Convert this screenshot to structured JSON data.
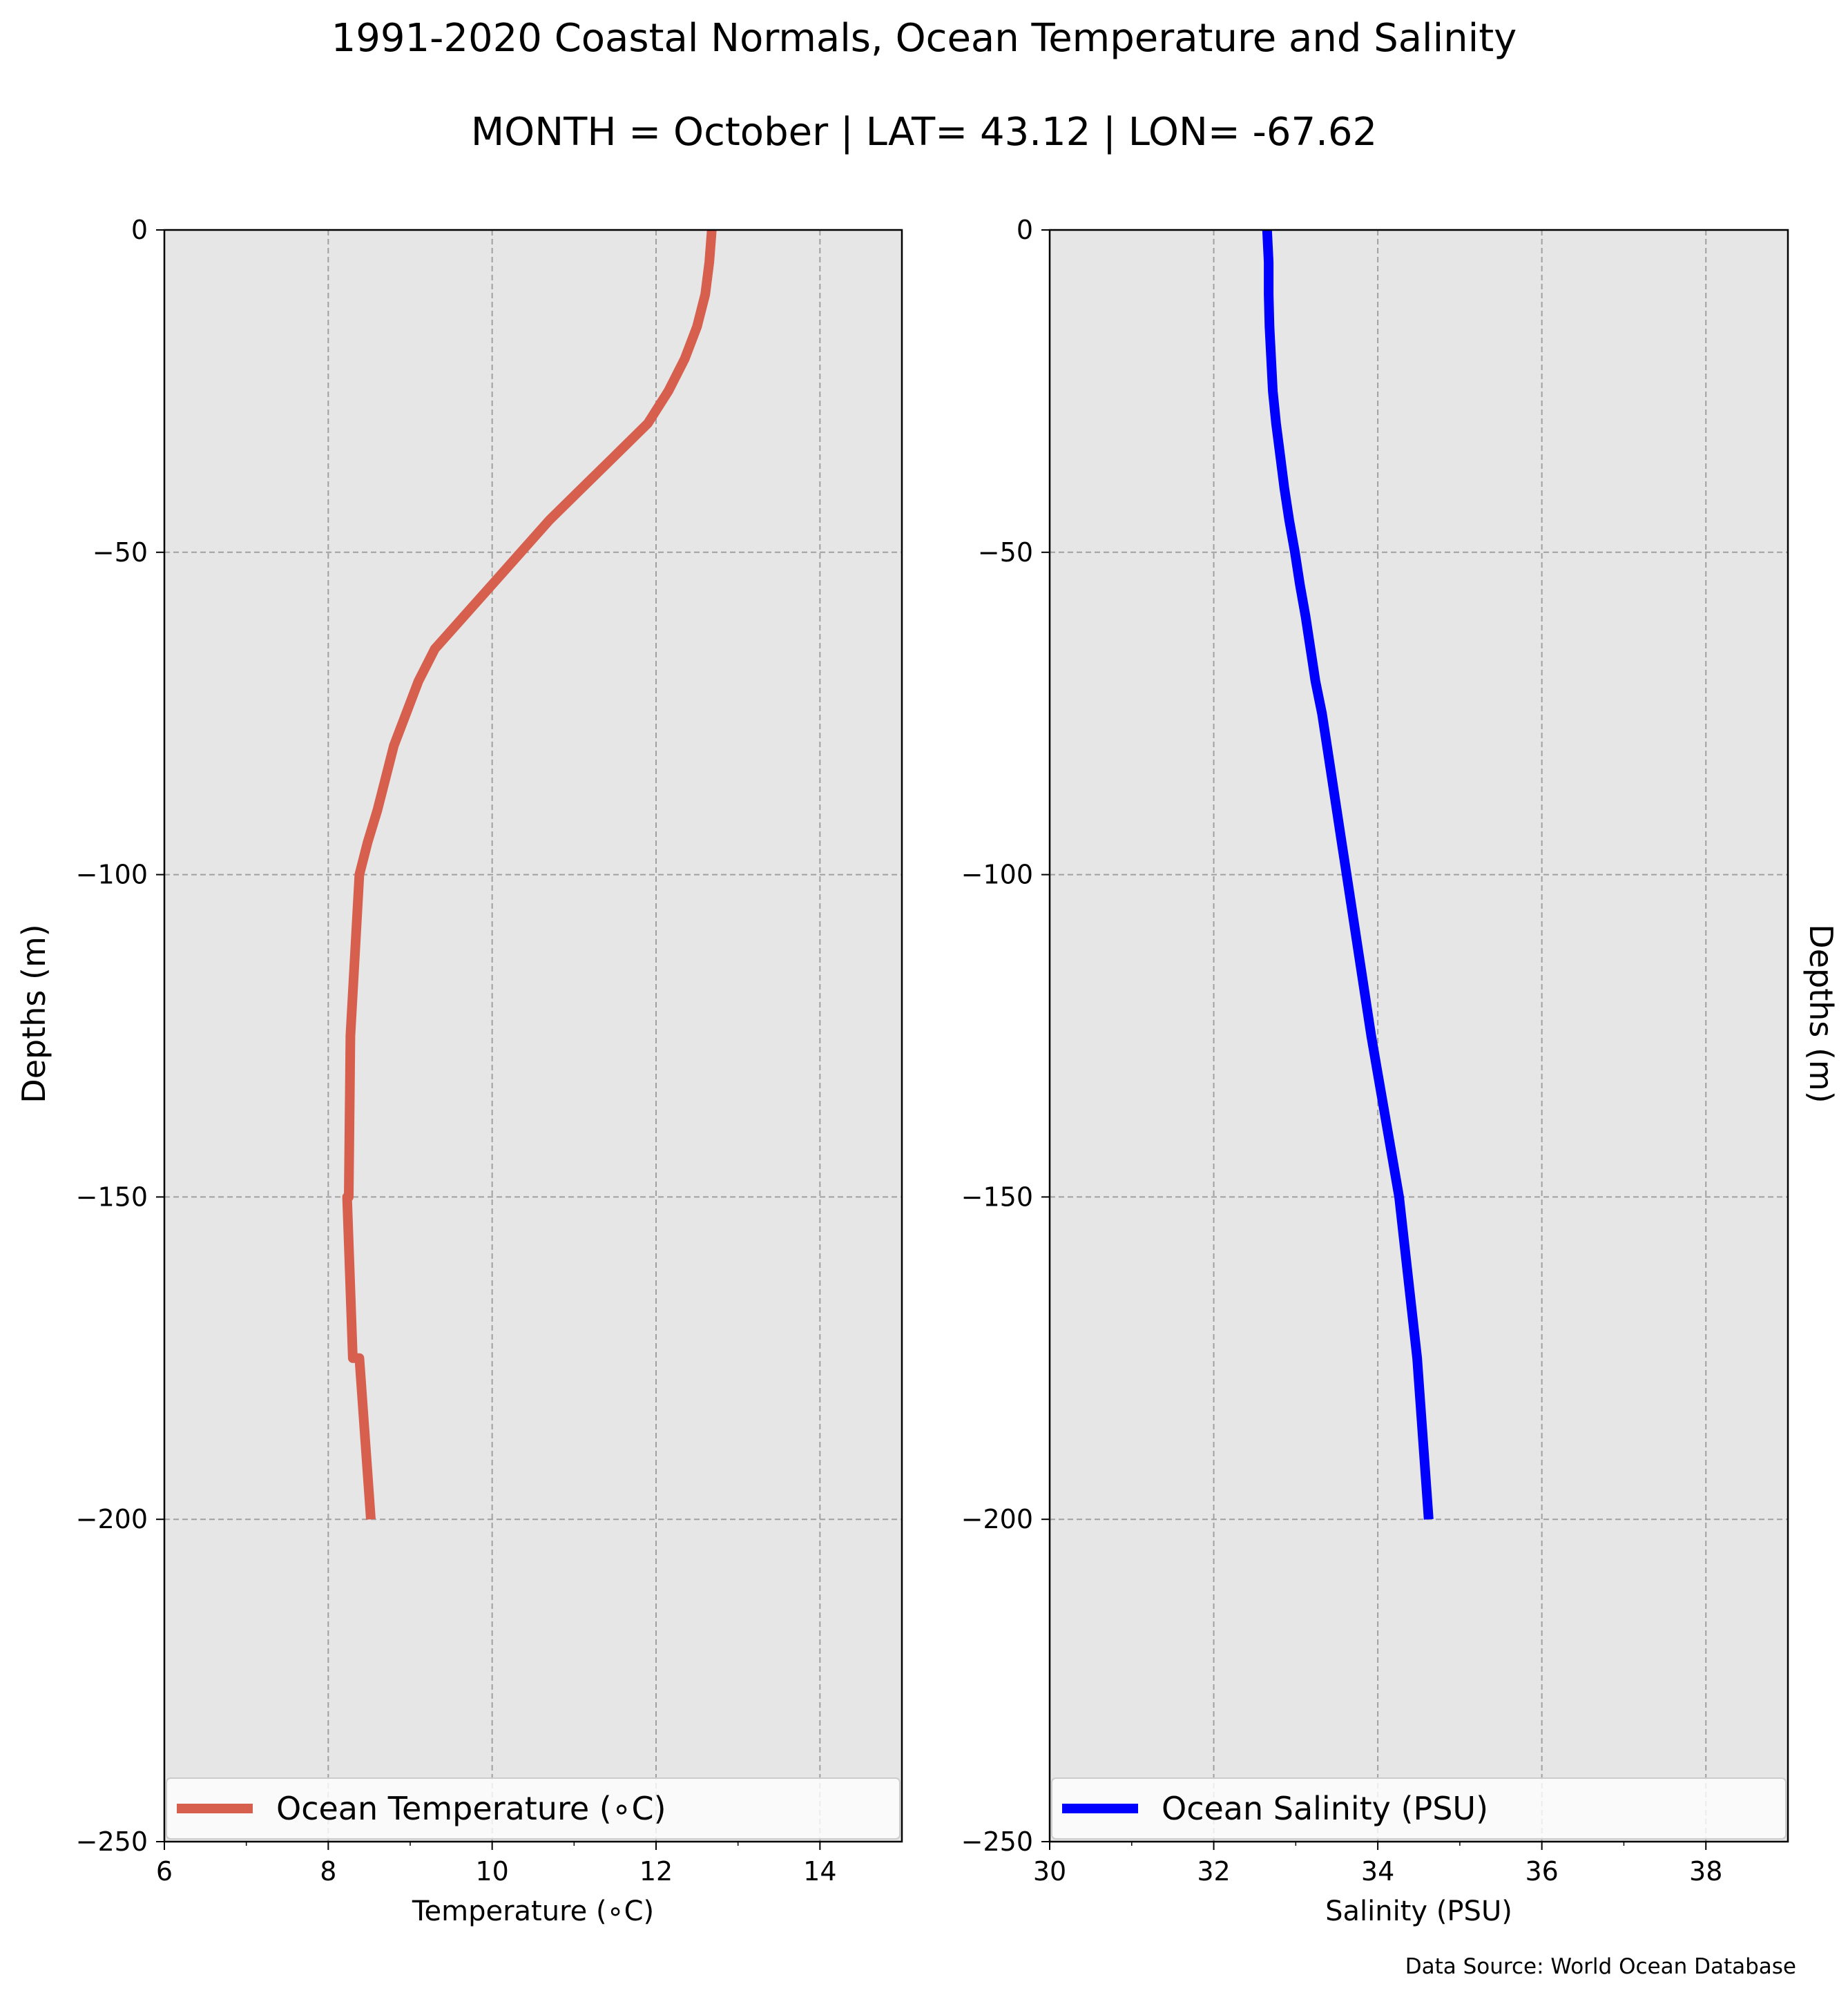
{
  "figure": {
    "title": "1991-2020 Coastal Normals, Ocean Temperature and Salinity",
    "subtitle": "MONTH = October | LAT= 43.12 | LON= -67.62",
    "left_ylabel": "Depths (m)",
    "right_ylabel": "Depths (m)",
    "source": "Data Source: World Ocean Database",
    "panel_background": "#e6e6e6",
    "grid_color": "#a0a0a0"
  },
  "chart_data": [
    {
      "type": "line",
      "xlabel": "Temperature (∘C)",
      "ylabel": "Depths (m)",
      "xlim": [
        6,
        15
      ],
      "ylim": [
        -250,
        0
      ],
      "xticks": [
        6,
        8,
        10,
        12,
        14
      ],
      "yticks": [
        0,
        -50,
        -100,
        -150,
        -200,
        -250
      ],
      "grid": true,
      "legend_position": "bottom",
      "series": [
        {
          "name": "Ocean Temperature (∘C)",
          "color": "#d65f4e",
          "x": [
            12.68,
            12.65,
            12.6,
            12.5,
            12.35,
            12.15,
            11.9,
            11.5,
            11.1,
            10.7,
            10.35,
            10.0,
            9.65,
            9.3,
            9.1,
            8.95,
            8.8,
            8.7,
            8.6,
            8.48,
            8.38,
            8.27,
            8.25,
            8.23,
            8.3,
            8.38,
            8.52
          ],
          "y": [
            0,
            -5,
            -10,
            -15,
            -20,
            -25,
            -30,
            -35,
            -40,
            -45,
            -50,
            -55,
            -60,
            -65,
            -70,
            -75,
            -80,
            -85,
            -90,
            -95,
            -100,
            -125,
            -150,
            -150,
            -175,
            -175,
            -200
          ]
        }
      ]
    },
    {
      "type": "line",
      "xlabel": "Salinity (PSU)",
      "ylabel": "Depths (m)",
      "xlim": [
        30,
        39
      ],
      "ylim": [
        -250,
        0
      ],
      "xticks": [
        30,
        32,
        34,
        36,
        38
      ],
      "yticks": [
        0,
        -50,
        -100,
        -150,
        -200,
        -250
      ],
      "grid": true,
      "legend_position": "bottom",
      "series": [
        {
          "name": "Ocean Salinity (PSU)",
          "color": "#0000ff",
          "x": [
            32.65,
            32.67,
            32.67,
            32.68,
            32.7,
            32.72,
            32.76,
            32.81,
            32.86,
            32.92,
            32.99,
            33.05,
            33.12,
            33.18,
            33.24,
            33.32,
            33.38,
            33.44,
            33.5,
            33.56,
            33.62,
            33.92,
            34.26,
            34.48,
            34.62
          ],
          "y": [
            0,
            -5,
            -10,
            -15,
            -20,
            -25,
            -30,
            -35,
            -40,
            -45,
            -50,
            -55,
            -60,
            -65,
            -70,
            -75,
            -80,
            -85,
            -90,
            -95,
            -100,
            -125,
            -150,
            -175,
            -200
          ]
        }
      ]
    }
  ]
}
